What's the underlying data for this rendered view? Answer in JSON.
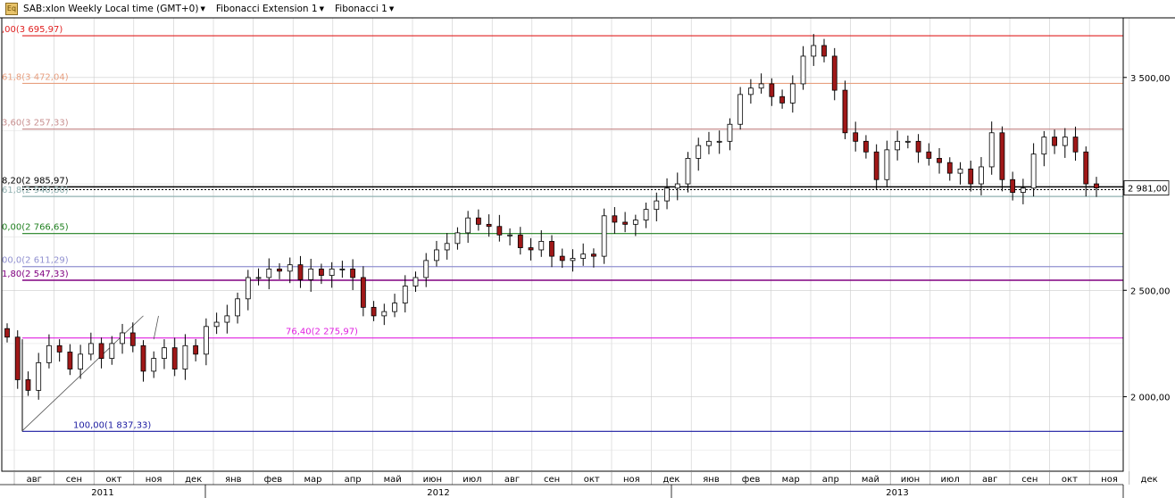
{
  "toolbar": {
    "symbol_label": "SAB:xlon Weekly Local time (GMT+0)",
    "indicator1_label": "Fibonacci Extension 1",
    "indicator2_label": "Fibonacci 1",
    "app_icon": "chart-app-icon"
  },
  "colors": {
    "up_candle": "#ffffff",
    "down_candle": "#a01818",
    "grid": "#cccccc",
    "price_marker_bg": "#ffffff"
  },
  "price_axis": {
    "ticks": [
      "3 500,00",
      "2 500,00",
      "2 000,00"
    ],
    "current_price_label": "2 981,00",
    "current_price": 2981
  },
  "fib_levels": [
    {
      "label": ",00(3 695,97)",
      "price": 3695.97,
      "color": "#e02020"
    },
    {
      "label": "61,8(3 472,04)",
      "price": 3472.04,
      "color": "#e8a080"
    },
    {
      "label": "3,60(3 257,33)",
      "price": 3257.33,
      "color": "#c89090"
    },
    {
      "label": "8,20(2 985,97)",
      "price": 2985.97,
      "color": "#000000"
    },
    {
      "label": "61,8(2 940,80)",
      "price": 2940.8,
      "color": "#90b0b0"
    },
    {
      "label": "0,00(2 766,65)",
      "price": 2766.65,
      "color": "#208020"
    },
    {
      "label": "00,0(2 611,29)",
      "price": 2611.29,
      "color": "#9090d0"
    },
    {
      "label": "1,80(2 547,33)",
      "price": 2547.33,
      "color": "#800080"
    },
    {
      "label": "76,40(2 275,97)",
      "price": 2275.97,
      "color": "#e020e0"
    },
    {
      "label": "100,00(1 837,33)",
      "price": 1837.33,
      "color": "#1a1aa0"
    }
  ],
  "time_axis": {
    "months": [
      "авг",
      "сен",
      "окт",
      "ноя",
      "дек",
      "янв",
      "фев",
      "мар",
      "апр",
      "май",
      "июн",
      "июл",
      "авг",
      "сен",
      "окт",
      "ноя",
      "дек",
      "янв",
      "фев",
      "мар",
      "апр",
      "май",
      "июн",
      "июл",
      "авг",
      "сен",
      "окт",
      "ноя",
      "дек"
    ],
    "years": [
      "2011",
      "2012",
      "2013"
    ]
  },
  "chart_data": {
    "type": "candlestick",
    "title": "SAB:xlon Weekly Local time (GMT+0)",
    "ylim": [
      1650,
      3780
    ],
    "y_ticks": [
      2000,
      2500,
      3500
    ],
    "grid": true,
    "close_prices": [
      2280,
      2080,
      2030,
      2160,
      2240,
      2210,
      2130,
      2200,
      2250,
      2180,
      2250,
      2300,
      2240,
      2120,
      2180,
      2230,
      2130,
      2240,
      2200,
      2330,
      2350,
      2380,
      2460,
      2560,
      2560,
      2600,
      2590,
      2620,
      2550,
      2600,
      2570,
      2600,
      2600,
      2560,
      2420,
      2380,
      2400,
      2440,
      2520,
      2560,
      2640,
      2690,
      2720,
      2770,
      2840,
      2810,
      2800,
      2760,
      2760,
      2700,
      2690,
      2730,
      2660,
      2640,
      2650,
      2670,
      2660,
      2850,
      2820,
      2810,
      2830,
      2880,
      2920,
      2980,
      3000,
      3120,
      3180,
      3200,
      3200,
      3280,
      3420,
      3450,
      3470,
      3410,
      3380,
      3470,
      3600,
      3650,
      3600,
      3440,
      3240,
      3200,
      3150,
      3020,
      3160,
      3200,
      3200,
      3150,
      3120,
      3100,
      3050,
      3070,
      3000,
      3080,
      3240,
      3020,
      2960,
      2980,
      3140,
      3220,
      3180,
      3220,
      3150,
      3000,
      2981
    ],
    "swing_lines": [
      [
        0,
        1840
      ],
      [
        13,
        2380
      ],
      [
        14,
        2270
      ]
    ]
  }
}
